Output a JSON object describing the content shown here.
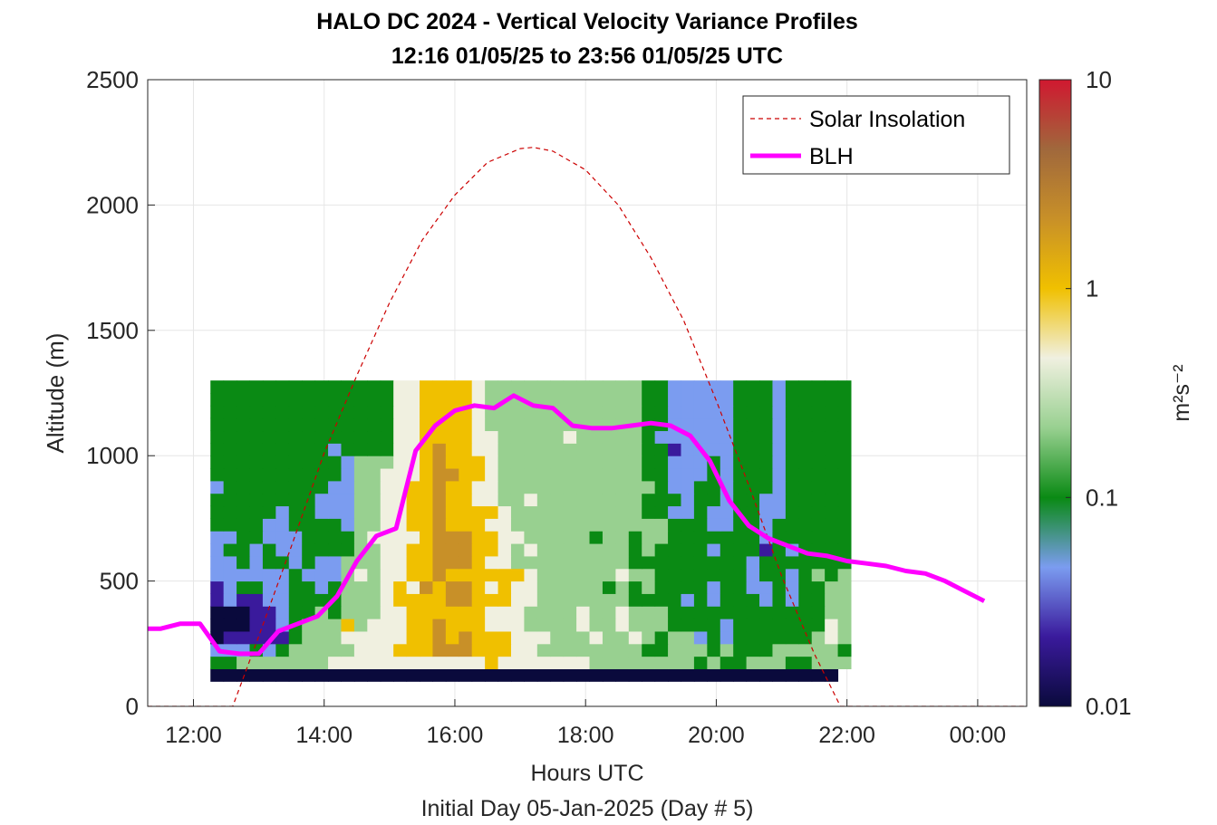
{
  "chart_data": {
    "type": "heatmap",
    "title": "HALO DC 2024 - Vertical Velocity Variance Profiles",
    "subtitle": "12:16 01/05/25 to 23:56 01/05/25  UTC",
    "xlabel": "Hours UTC",
    "xlabel2": "Initial Day 05-Jan-2025 (Day # 5)",
    "ylabel": "Altitude (m)",
    "xlim": [
      11.3,
      24.75
    ],
    "ylim": [
      0,
      2500
    ],
    "x_ticks": [
      12,
      14,
      16,
      18,
      20,
      22,
      24
    ],
    "x_tick_labels": [
      "12:00",
      "14:00",
      "16:00",
      "18:00",
      "20:00",
      "22:00",
      "00:00"
    ],
    "y_ticks": [
      0,
      500,
      1000,
      1500,
      2000,
      2500
    ],
    "y_tick_labels": [
      "0",
      "500",
      "1000",
      "1500",
      "2000",
      "2500"
    ],
    "grid": true,
    "colorbar": {
      "label": "m²s⁻²",
      "scale": "log",
      "range": [
        0.01,
        10
      ],
      "tick_values": [
        0.01,
        0.1,
        1,
        10
      ],
      "tick_labels": [
        "0.01",
        "0.1",
        "1",
        "10"
      ]
    },
    "heatmap": {
      "t_start": 12.26,
      "t_step": 0.2,
      "z_start": 100,
      "z_step": 50,
      "color_index_scale": "0=0.01 ... 9=10 (log)",
      "rows": [
        "000000000000000000000000000000000000000000000000",
        "3344444445555555555556555555544444444343344433444",
        "2223234444455566677766655444444443344434333444443",
        "0111113444555556676766655544454454344232333333454",
        "0001123444645556676665554444544544433332333333354",
        "0001123343444556666665554444544544433333333333344",
        "1211223333444566667766655444444433332323332323344",
        "1233223323444565767765655444443434333323322323344",
        "2222223222454556676666665444444544333333323323434",
        "2232332322444556677765544444444433333333323333333",
        "2332322333344556677766545444444434333323331323333",
        "2233222333345555677766554444434434433333332333333",
        "3333223333244556676665544444444444433322332333333",
        "3333323322244556676666544444444443322322332233333",
        "3333333322244556676655445444444443332332332233333",
        "2333333332244556676655444444444444322332333233333",
        "3333333333244555677665444444444443322232333233333",
        "3333333333244455676665444444444443322232333233333",
        "3333333332333355676655444444444443312222333233333",
        "3333333333333355666655444445444443222222333233333",
        "3333333333333355666654444444444443322222333233333",
        "3333333333333355666654444444444443322222333233333",
        "3333333333333355666654444444444443322222333233333",
        "3333333333333355666654444444444443322222333233333"
      ]
    },
    "series": [
      {
        "name": "Solar Insolation",
        "style": "dashed",
        "color": "#cc0000",
        "peak_altitude_equivalent": 2230,
        "x": [
          11.3,
          12.6,
          13.0,
          13.5,
          14.0,
          14.5,
          15.0,
          15.5,
          16.0,
          16.5,
          17.0,
          17.2,
          17.5,
          18.0,
          18.5,
          19.0,
          19.5,
          20.0,
          20.5,
          21.0,
          21.5,
          21.9,
          24.75
        ],
        "y": [
          0,
          0,
          280,
          640,
          1010,
          1320,
          1610,
          1860,
          2040,
          2170,
          2225,
          2230,
          2215,
          2140,
          2000,
          1790,
          1540,
          1220,
          880,
          520,
          210,
          0,
          0
        ]
      },
      {
        "name": "BLH",
        "color": "#ff00ff",
        "x": [
          11.3,
          11.5,
          11.8,
          12.1,
          12.4,
          12.7,
          13.0,
          13.3,
          13.6,
          13.9,
          14.2,
          14.5,
          14.8,
          15.1,
          15.4,
          15.7,
          16.0,
          16.3,
          16.6,
          16.9,
          17.2,
          17.5,
          17.8,
          18.1,
          18.4,
          18.7,
          19.0,
          19.3,
          19.6,
          19.9,
          20.2,
          20.5,
          20.8,
          21.1,
          21.4,
          21.7,
          22.0,
          22.3,
          22.6,
          22.9,
          23.2,
          23.5,
          23.8,
          24.1
        ],
        "y": [
          310,
          310,
          330,
          330,
          220,
          210,
          210,
          300,
          330,
          360,
          440,
          580,
          680,
          710,
          1020,
          1120,
          1180,
          1200,
          1190,
          1240,
          1200,
          1190,
          1120,
          1110,
          1110,
          1120,
          1130,
          1120,
          1080,
          980,
          820,
          720,
          670,
          640,
          610,
          600,
          580,
          570,
          560,
          540,
          530,
          500,
          460,
          420
        ]
      }
    ],
    "legend": {
      "placement": "top-right",
      "entries": [
        "Solar Insolation",
        "BLH"
      ]
    },
    "colors": {
      "solar": "#cc0000",
      "blh": "#ff00ff",
      "axis": "#262626",
      "grid": "#e6e6e6"
    }
  }
}
